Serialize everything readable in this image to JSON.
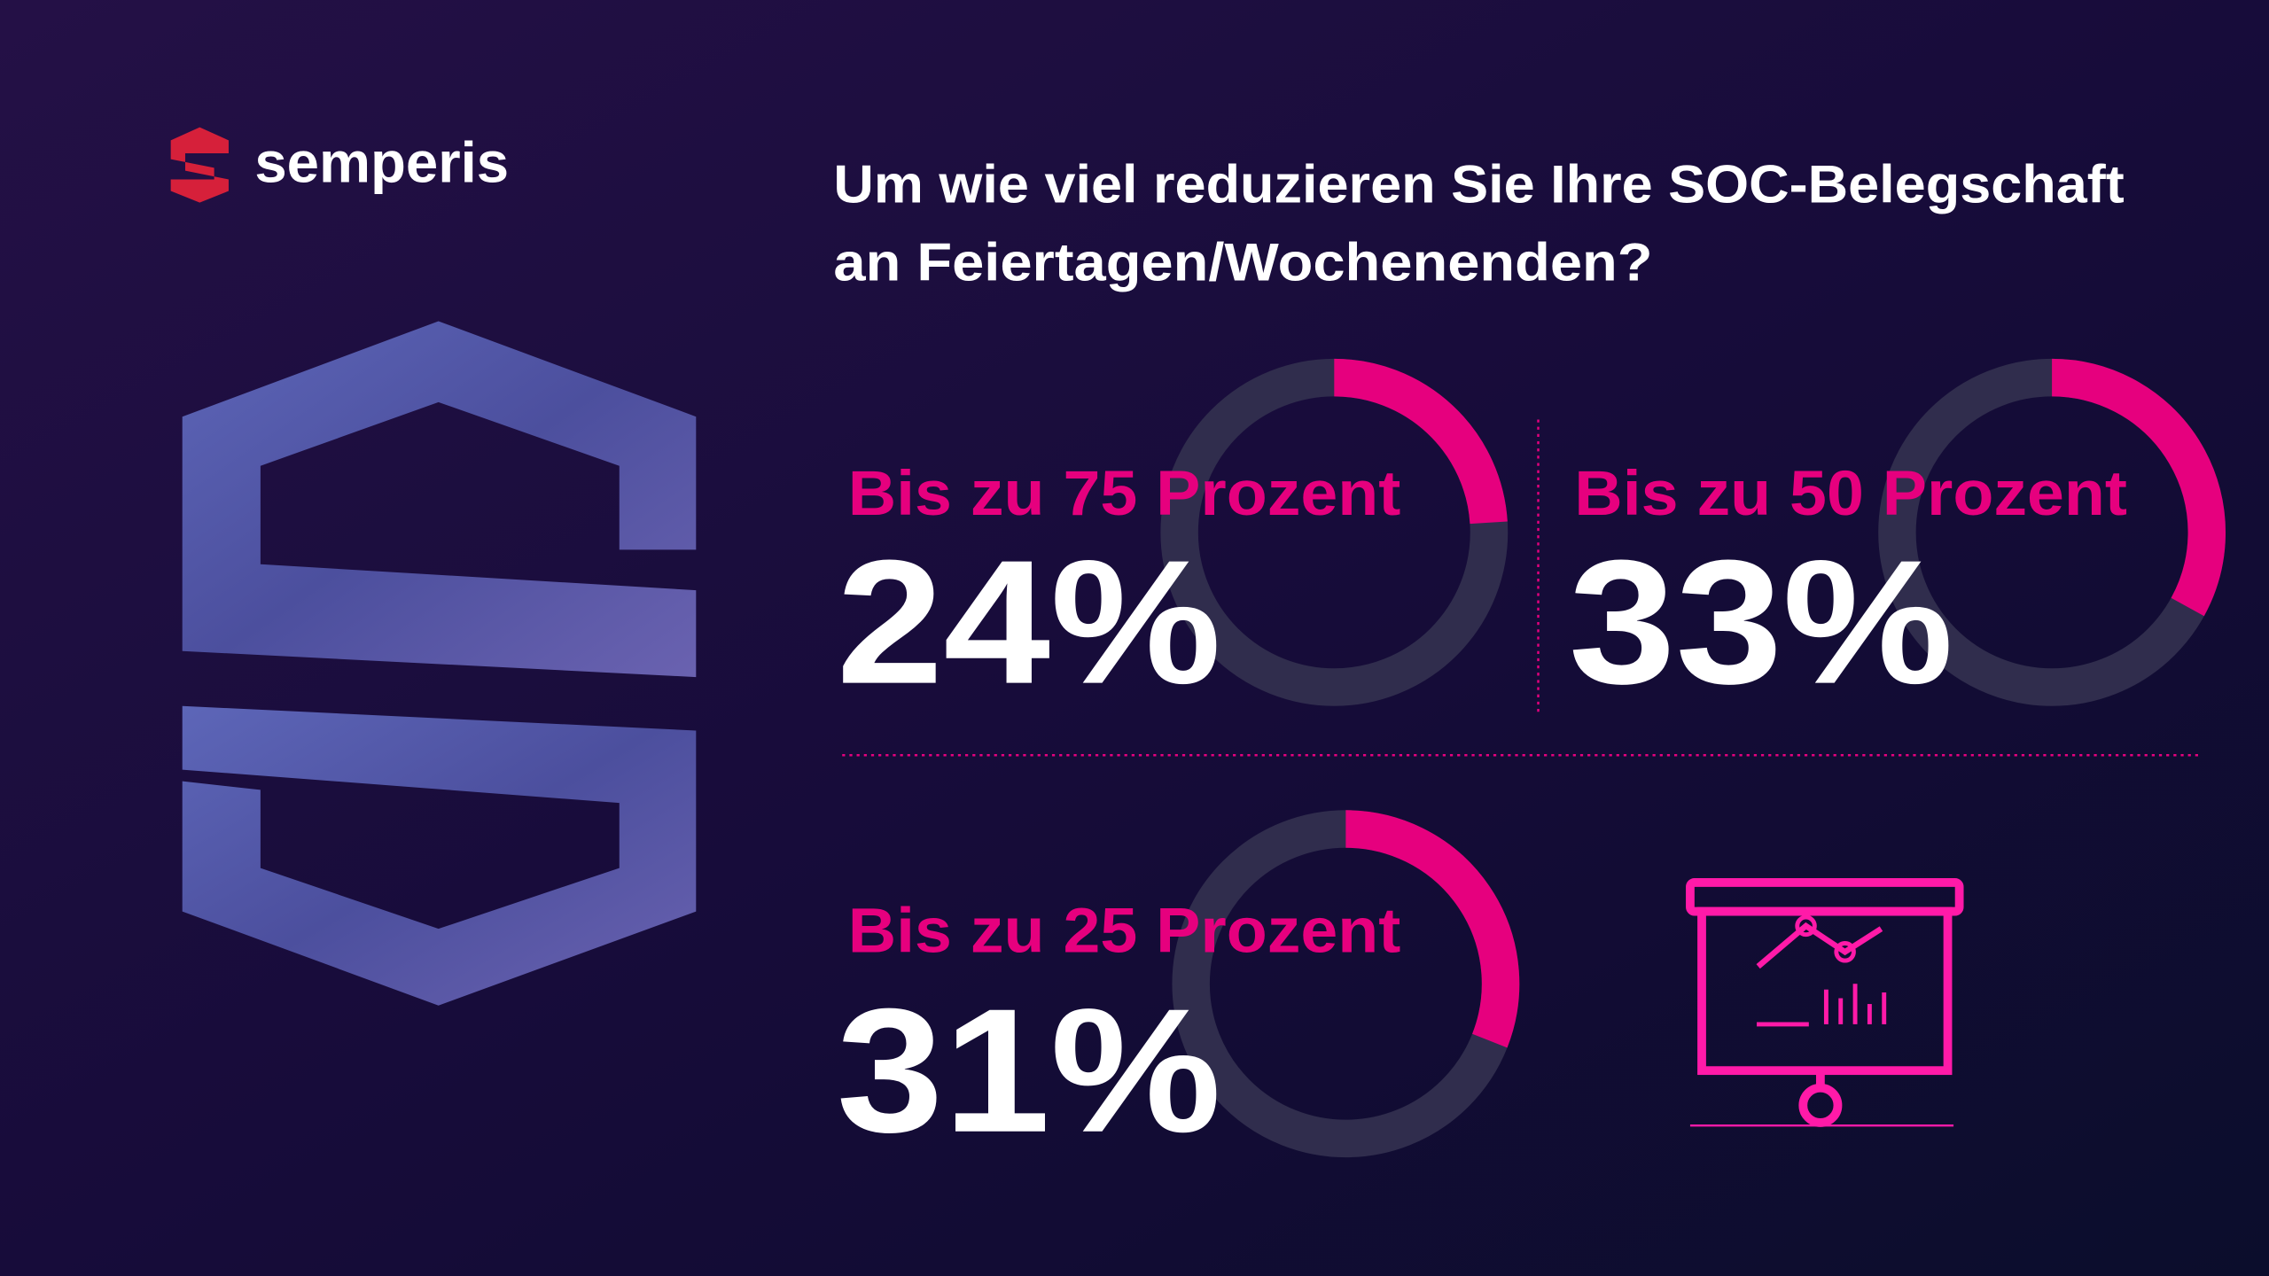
{
  "brand": "semperis",
  "title": [
    "Um wie viel reduzieren Sie Ihre SOC-Belegschaft",
    "an Feiertagen/Wochenenden?"
  ],
  "chart_data": [
    {
      "type": "donut",
      "categories": [
        "Bis zu 75 Prozent"
      ],
      "values": [
        24
      ],
      "value_labels": [
        "24%"
      ],
      "color": "#e6007e",
      "track_color": "#302d4d"
    },
    {
      "type": "donut",
      "categories": [
        "Bis zu 50 Prozent"
      ],
      "values": [
        33
      ],
      "value_labels": [
        "33%"
      ],
      "color": "#e6007e",
      "track_color": "#302d4d"
    },
    {
      "type": "donut",
      "categories": [
        "Bis zu 25 Prozent"
      ],
      "values": [
        31
      ],
      "value_labels": [
        "31%"
      ],
      "color": "#e6007e",
      "track_color": "#302d4d"
    }
  ]
}
